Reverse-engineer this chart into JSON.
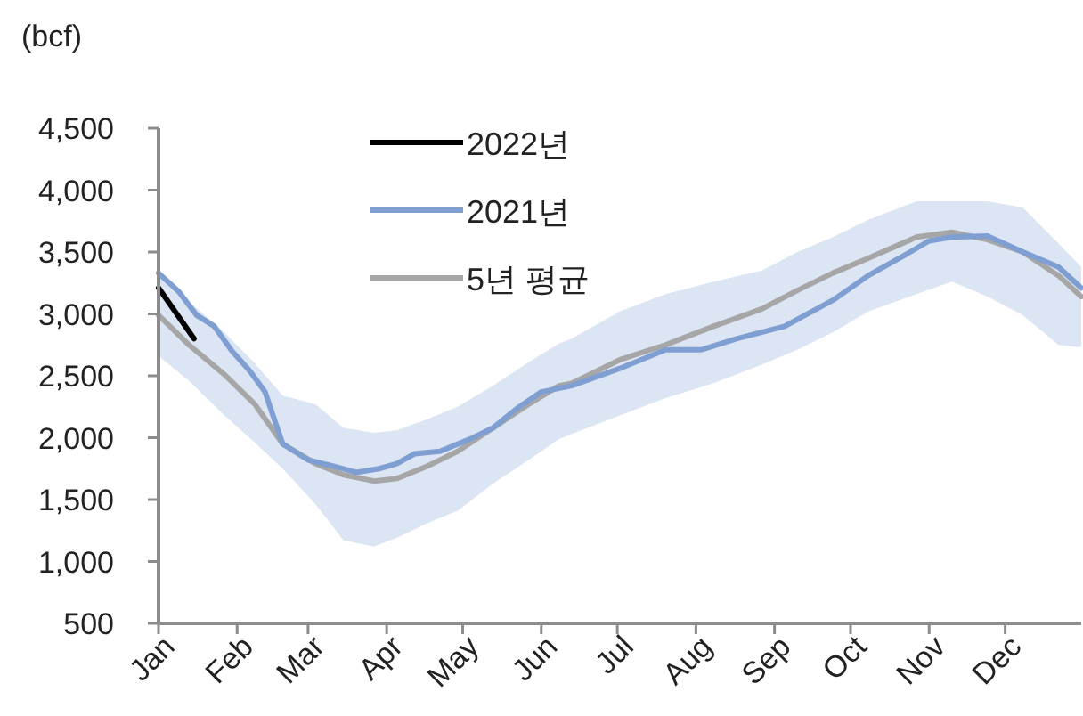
{
  "chart_data": {
    "type": "line",
    "ylabel": "(bcf)",
    "xlim": [
      "--01-01",
      "--12-31"
    ],
    "xticks": [
      {
        "value": "--01-01",
        "label": "Jan"
      },
      {
        "value": "--02-01",
        "label": "Feb"
      },
      {
        "value": "--03-01",
        "label": "Mar"
      },
      {
        "value": "--04-01",
        "label": "Apr"
      },
      {
        "value": "--05-01",
        "label": "May"
      },
      {
        "value": "--06-01",
        "label": "Jun"
      },
      {
        "value": "--07-01",
        "label": "Jul"
      },
      {
        "value": "--08-01",
        "label": "Aug"
      },
      {
        "value": "--09-01",
        "label": "Sep"
      },
      {
        "value": "--10-01",
        "label": "Oct"
      },
      {
        "value": "--11-01",
        "label": "Nov"
      },
      {
        "value": "--12-01",
        "label": "Dec"
      }
    ],
    "ylim": [
      500,
      4500
    ],
    "yticks": [
      500,
      {
        "value": 1000,
        "label": "1,000"
      },
      {
        "value": 1500,
        "label": "1,500"
      },
      {
        "value": 2000,
        "label": "2,000"
      },
      {
        "value": 2500,
        "label": "2,500"
      },
      {
        "value": 3000,
        "label": "3,000"
      },
      {
        "value": 3500,
        "label": "3,500"
      },
      {
        "value": 4000,
        "label": "4,000"
      },
      {
        "value": 4500,
        "label": "4,500"
      }
    ],
    "grid": false,
    "legend": "top left",
    "marker": "none",
    "line_style": "solid",
    "series": [
      {
        "name": "2022년",
        "color": "#000000",
        "x": [
          "--01-01",
          "--01-15"
        ],
        "values": [
          3210,
          2800
        ]
      },
      {
        "name": "2021년",
        "color": "#7f9fd3",
        "x": [
          "--01-01",
          "--01-09",
          "--01-16",
          "--01-23",
          "--01-30",
          "--02-06",
          "--02-12",
          "--02-16",
          "--02-19",
          "--03-01",
          "--03-11",
          "--03-20",
          "--03-29",
          "--04-05",
          "--04-12",
          "--04-22",
          "--05-04",
          "--05-13",
          "--05-22",
          "--06-01",
          "--06-13",
          "--07-02",
          "--07-20",
          "--08-03",
          "--08-17",
          "--09-05",
          "--09-24",
          "--10-08",
          "--10-22",
          "--11-01",
          "--11-10",
          "--11-24",
          "--12-08",
          "--12-22",
          "--12-31"
        ],
        "values": [
          3330,
          3180,
          2990,
          2900,
          2700,
          2540,
          2370,
          2130,
          1950,
          1820,
          1770,
          1720,
          1750,
          1790,
          1870,
          1890,
          1990,
          2080,
          2230,
          2370,
          2420,
          2560,
          2710,
          2710,
          2800,
          2900,
          3110,
          3310,
          3470,
          3590,
          3620,
          3630,
          3500,
          3380,
          3210
        ]
      },
      {
        "name": "5년 평균",
        "color": "#a6a6a6",
        "x": [
          "--01-01",
          "--01-13",
          "--01-27",
          "--02-08",
          "--02-19",
          "--03-04",
          "--03-15",
          "--03-27",
          "--04-05",
          "--04-17",
          "--04-29",
          "--05-13",
          "--05-27",
          "--06-08",
          "--06-13",
          "--07-02",
          "--07-20",
          "--08-08",
          "--08-27",
          "--09-10",
          "--09-24",
          "--10-08",
          "--10-27",
          "--11-10",
          "--11-24",
          "--12-08",
          "--12-22",
          "--12-31"
        ],
        "values": [
          2990,
          2750,
          2510,
          2270,
          1950,
          1790,
          1700,
          1650,
          1670,
          1770,
          1890,
          2080,
          2270,
          2420,
          2440,
          2630,
          2750,
          2900,
          3040,
          3190,
          3330,
          3450,
          3620,
          3660,
          3600,
          3500,
          3310,
          3140
        ],
        "lower": [
          2660,
          2460,
          2180,
          1960,
          1750,
          1460,
          1170,
          1120,
          1190,
          1310,
          1410,
          1630,
          1820,
          1990,
          2030,
          2180,
          2320,
          2440,
          2590,
          2710,
          2850,
          3020,
          3160,
          3260,
          3140,
          2990,
          2750,
          2730
        ],
        "upper": [
          3330,
          3100,
          2850,
          2600,
          2340,
          2270,
          2080,
          2040,
          2060,
          2150,
          2250,
          2420,
          2610,
          2760,
          2800,
          3020,
          3160,
          3260,
          3350,
          3500,
          3620,
          3760,
          3910,
          3910,
          3910,
          3860,
          3570,
          3380
        ]
      }
    ]
  }
}
